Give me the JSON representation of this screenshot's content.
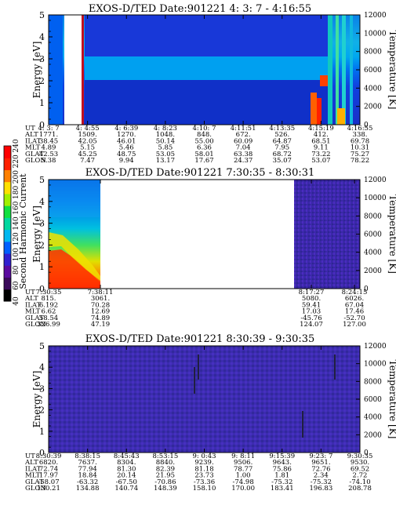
{
  "figure": {
    "colorbar": {
      "label": "Second Harmonic Current",
      "ticks": [
        "40",
        "60",
        "80",
        "100",
        "120",
        "140",
        "160",
        "180",
        "200",
        "220",
        "240"
      ],
      "colors": [
        "#000000",
        "#3a0a5a",
        "#5a0aa0",
        "#3020d0",
        "#0060ff",
        "#00b8f0",
        "#00d8a0",
        "#10e040",
        "#a0f000",
        "#ffe000",
        "#ff8000",
        "#ff2000",
        "#ff0000"
      ]
    }
  },
  "chart_data": [
    {
      "type": "heatmap",
      "title": "EXOS-D/TED   Date:901221   4: 3: 7 - 4:16:55",
      "ylabel": "Energy [eV]",
      "ylabel_right": "Temperature [K]",
      "ylim": [
        0,
        5
      ],
      "yticks": [
        "0",
        "1",
        "2",
        "3",
        "4",
        "5"
      ],
      "ylim_right": [
        0,
        12000
      ],
      "yticks_right": [
        "0",
        "2000",
        "4000",
        "6000",
        "8000",
        "10000",
        "12000"
      ],
      "row_labels": [
        "UT",
        "ALT",
        "ILAT",
        "MLT",
        "GLAT",
        "GLON"
      ],
      "columns": [
        [
          "4: 3: 7",
          "1771.",
          "38.45",
          "4.89",
          "42.53",
          "5.38"
        ],
        [
          "4: 4:55",
          "1509.",
          "42.05",
          "5.15",
          "45.25",
          "7.47"
        ],
        [
          "4: 6:39",
          "1270.",
          "46.01",
          "5.46",
          "48.75",
          "9.94"
        ],
        [
          "4: 8:23",
          "1048.",
          "50.14",
          "5.85",
          "53.05",
          "13.17"
        ],
        [
          "4:10: 7",
          "848.",
          "55.00",
          "6.36",
          "58.01",
          "17.67"
        ],
        [
          "4:11:51",
          "672.",
          "60.09",
          "7.04",
          "63.38",
          "24.37"
        ],
        [
          "4:13:35",
          "526.",
          "64.87",
          "7.95",
          "68.72",
          "35.07"
        ],
        [
          "4:15:19",
          "412.",
          "68.51",
          "9.11",
          "73.22",
          "53.07"
        ],
        [
          "4:16:55",
          "338.",
          "69.78",
          "10.31",
          "75.27",
          "78.22"
        ]
      ]
    },
    {
      "type": "heatmap",
      "title": "EXOS-D/TED   Date:901221   7:30:35 - 8:30:31",
      "ylabel": "Energy [eV]",
      "ylabel_right": "Temperature [K]",
      "ylim": [
        0,
        5
      ],
      "yticks": [
        "0",
        "1",
        "2",
        "3",
        "4",
        "5"
      ],
      "ylim_right": [
        0,
        12000
      ],
      "yticks_right": [
        "0",
        "2000",
        "4000",
        "6000",
        "8000",
        "10000",
        "12000"
      ],
      "row_labels": [
        "UT",
        "ALT",
        "ILAT",
        "MLT",
        "GLAT",
        "GLON"
      ],
      "columns": [
        [
          "7:30:35",
          "815.",
          "6.192",
          "6.62",
          "58.54",
          "326.99"
        ],
        [
          "7:38:11",
          "3061.",
          "70.28",
          "12.69",
          "74.89",
          "47.19"
        ],
        [
          "8:17:27",
          "5080.",
          "59.41",
          "17.03",
          "-45.76",
          "124.07"
        ],
        [
          "8:24:15",
          "6026.",
          "67.04",
          "17.46",
          "-52.70",
          "127.00"
        ]
      ]
    },
    {
      "type": "heatmap",
      "title": "EXOS-D/TED   Date:901221   8:30:39 - 9:30:35",
      "ylabel": "Energy [eV]",
      "ylabel_right": "Temperature [K]",
      "ylim": [
        0,
        5
      ],
      "yticks": [
        "0",
        "1",
        "2",
        "3",
        "4",
        "5"
      ],
      "ylim_right": [
        0,
        12000
      ],
      "yticks_right": [
        "0",
        "2000",
        "4000",
        "6000",
        "8000",
        "10000",
        "12000"
      ],
      "row_labels": [
        "UT",
        "ALT",
        "ILAT",
        "MLT",
        "GLAT",
        "GLON"
      ],
      "columns": [
        [
          "8:30:39",
          "6820.",
          "72.74",
          "17.97",
          "-58.07",
          "130.21"
        ],
        [
          "8:38:15",
          "7637.",
          "77.94",
          "18.84",
          "-63.32",
          "134.88"
        ],
        [
          "8:45:43",
          "8304.",
          "81.30",
          "20.14",
          "-67.50",
          "140.74"
        ],
        [
          "8:53:15",
          "8840.",
          "82.39",
          "21.95",
          "-70.86",
          "148.39"
        ],
        [
          "9: 0:43",
          "9239.",
          "81.18",
          "23.73",
          "-73.36",
          "158.10"
        ],
        [
          "9: 8:11",
          "9506.",
          "78.77",
          "1.00",
          "-74.98",
          "170.00"
        ],
        [
          "9:15:39",
          "9643.",
          "75.86",
          "1.81",
          "-75.32",
          "183.41"
        ],
        [
          "9:23: 7",
          "9651.",
          "72.76",
          "2.34",
          "-75.32",
          "196.83"
        ],
        [
          "9:30:35",
          "9530.",
          "69.52",
          "2.72",
          "-74.10",
          "208.78"
        ]
      ]
    }
  ]
}
